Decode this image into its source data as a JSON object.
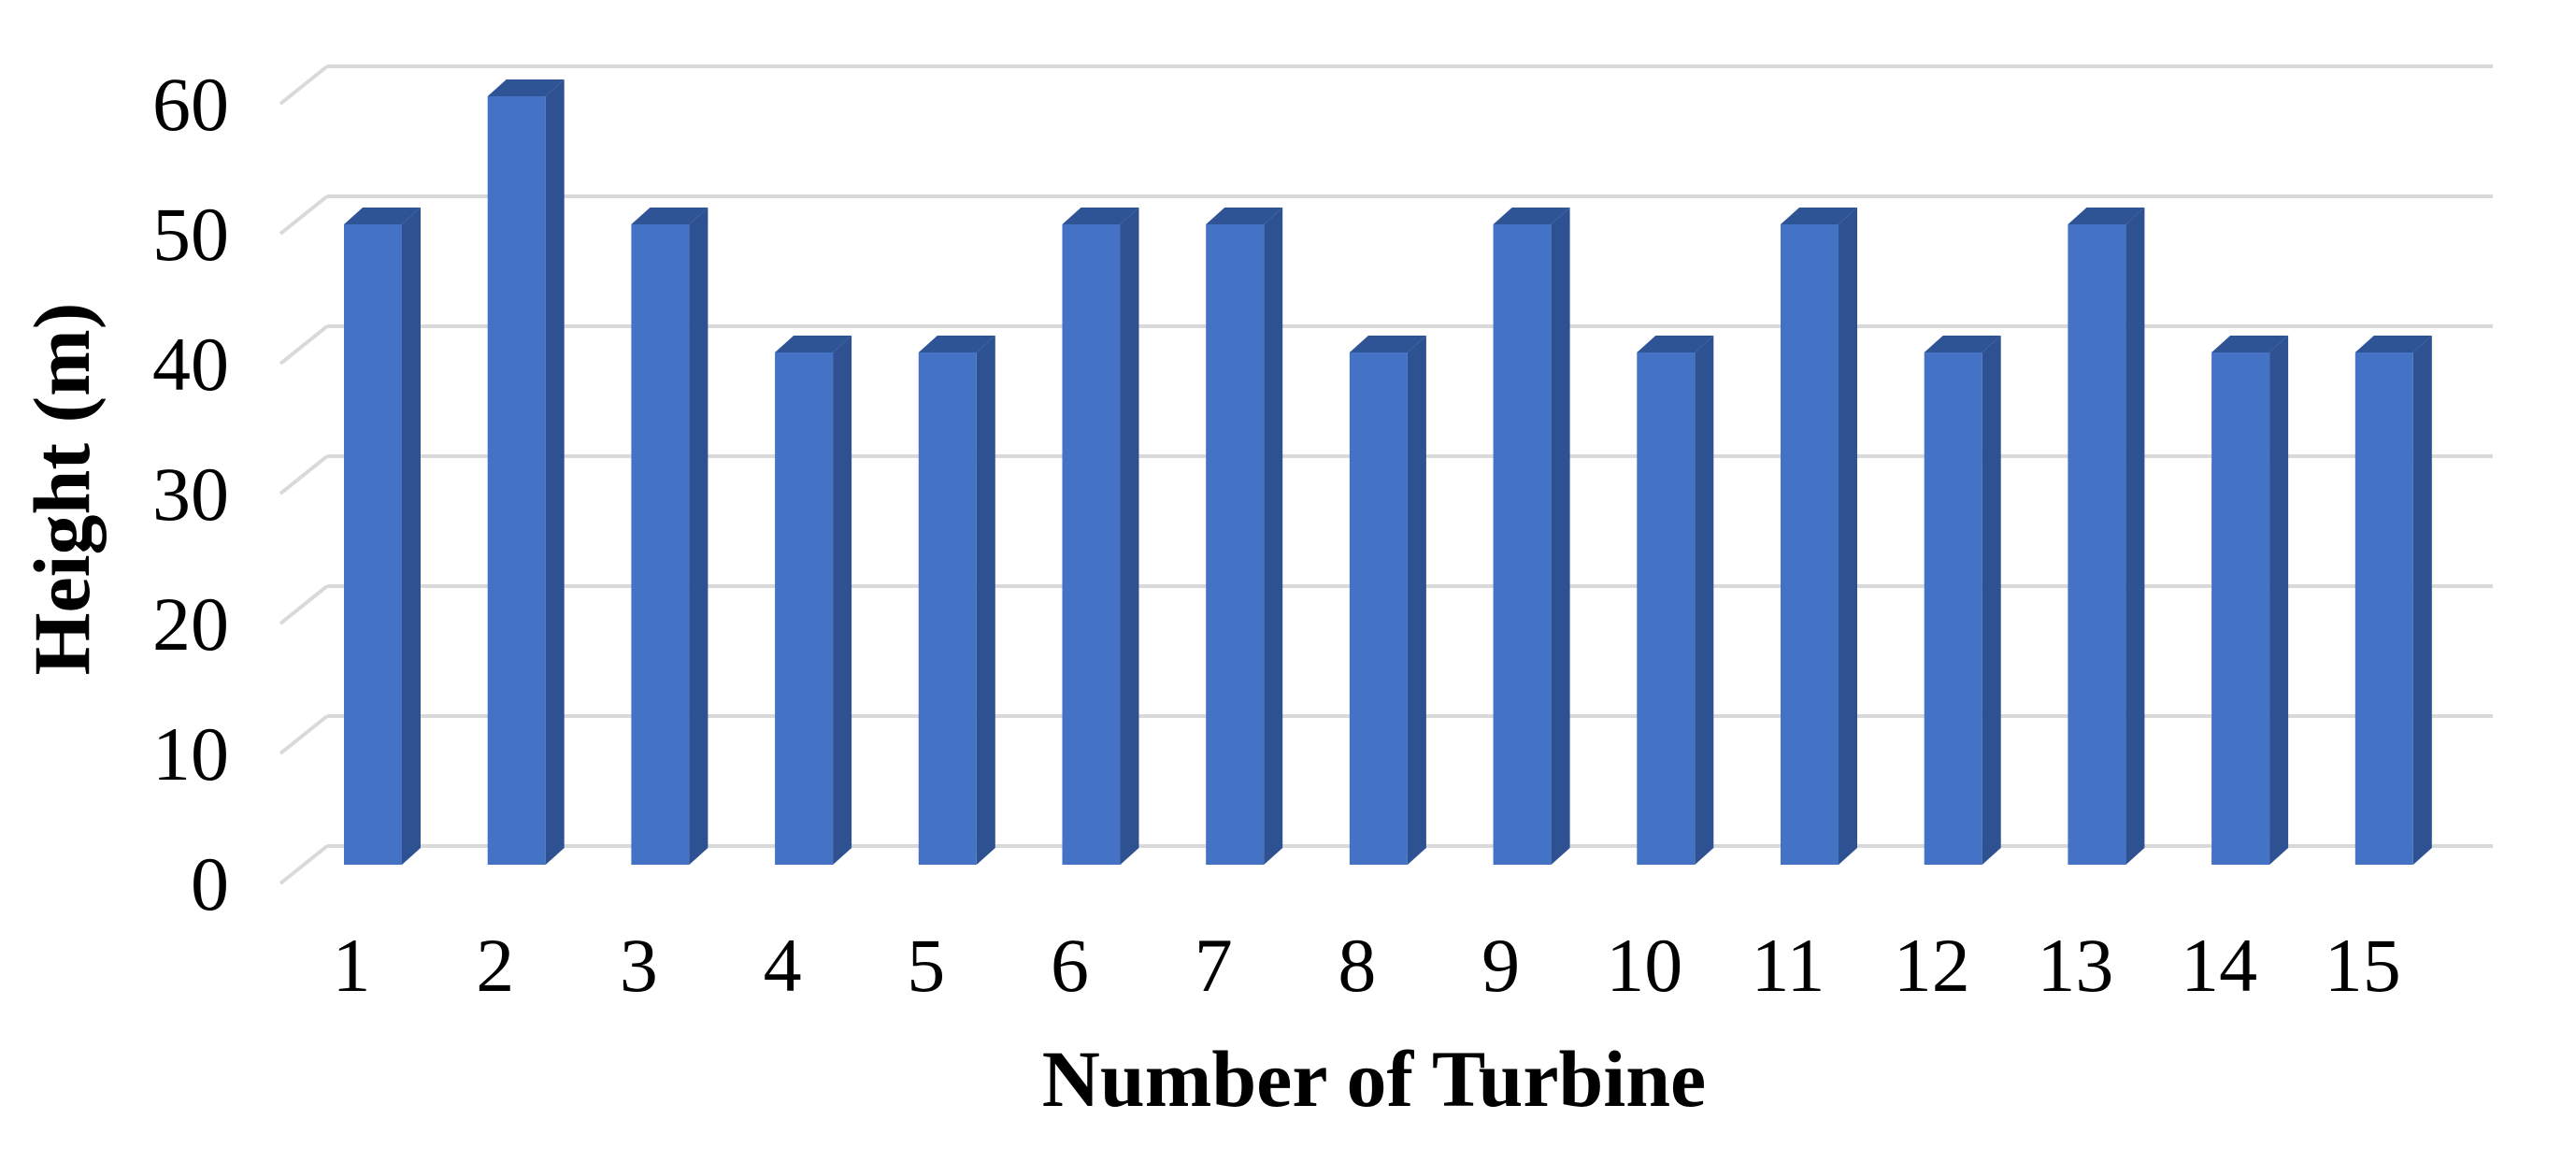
{
  "chart_data": {
    "type": "bar",
    "style": "3d-column",
    "title": "",
    "xlabel": "Number of Turbine",
    "ylabel": "Height (m)",
    "categories": [
      "1",
      "2",
      "3",
      "4",
      "5",
      "6",
      "7",
      "8",
      "9",
      "10",
      "11",
      "12",
      "13",
      "14",
      "15"
    ],
    "values": [
      50,
      60,
      50,
      40,
      40,
      50,
      50,
      40,
      50,
      40,
      50,
      40,
      50,
      40,
      40
    ],
    "series": [
      {
        "name": "Height (m)",
        "values": [
          50,
          60,
          50,
          40,
          40,
          50,
          50,
          40,
          50,
          40,
          50,
          40,
          50,
          40,
          40
        ]
      }
    ],
    "yticks": [
      0,
      10,
      20,
      30,
      40,
      50,
      60
    ],
    "ylim": [
      0,
      60
    ],
    "grid": "horizontal",
    "legend_position": "none",
    "colors": {
      "bar_front": "#4472c4",
      "bar_side": "#2e5191",
      "bar_top": "#2f5496",
      "gridline": "#d9d9d9",
      "text": "#000000",
      "background": "#ffffff"
    }
  }
}
